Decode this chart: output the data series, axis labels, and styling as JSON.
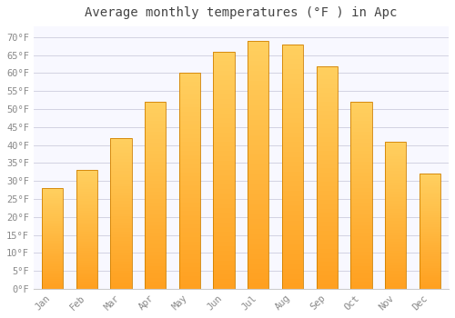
{
  "title": "Average monthly temperatures (°F ) in Apc",
  "months": [
    "Jan",
    "Feb",
    "Mar",
    "Apr",
    "May",
    "Jun",
    "Jul",
    "Aug",
    "Sep",
    "Oct",
    "Nov",
    "Dec"
  ],
  "values": [
    28,
    33,
    42,
    52,
    60,
    66,
    69,
    68,
    62,
    52,
    41,
    32
  ],
  "bar_color_top": "#FFD060",
  "bar_color_bottom": "#FFA020",
  "bar_edge_color": "#D08000",
  "background_color": "#FFFFFF",
  "plot_bg_color": "#F8F8FF",
  "grid_color": "#CCCCDD",
  "text_color": "#888888",
  "title_color": "#444444",
  "ylim": [
    0,
    73
  ],
  "ytick_step": 5,
  "title_fontsize": 10,
  "tick_fontsize": 7.5
}
